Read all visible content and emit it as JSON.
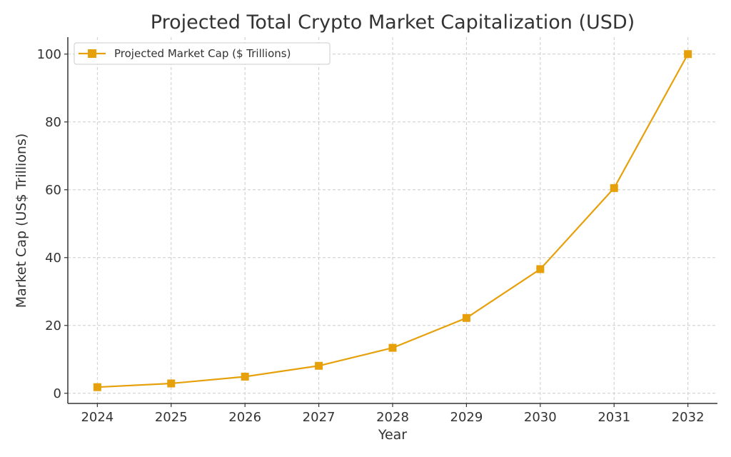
{
  "chart_data": {
    "type": "line",
    "title": "Projected Total Crypto Market Capitalization (USD)",
    "xlabel": "Year",
    "ylabel": "Market Cap (US$ Trillions)",
    "x": [
      2024,
      2025,
      2026,
      2027,
      2028,
      2029,
      2030,
      2031,
      2032
    ],
    "series": [
      {
        "name": "Projected Market Cap ($ Trillions)",
        "values": [
          1.8,
          2.9,
          4.9,
          8.1,
          13.4,
          22.2,
          36.6,
          60.5,
          100.0
        ],
        "color": "#e6a00a",
        "marker": "square"
      }
    ],
    "xlim": [
      2023.6,
      2032.4
    ],
    "ylim": [
      -3,
      105
    ],
    "yticks": [
      0,
      20,
      40,
      60,
      80,
      100
    ],
    "grid": true,
    "legend_position": "top-left"
  }
}
